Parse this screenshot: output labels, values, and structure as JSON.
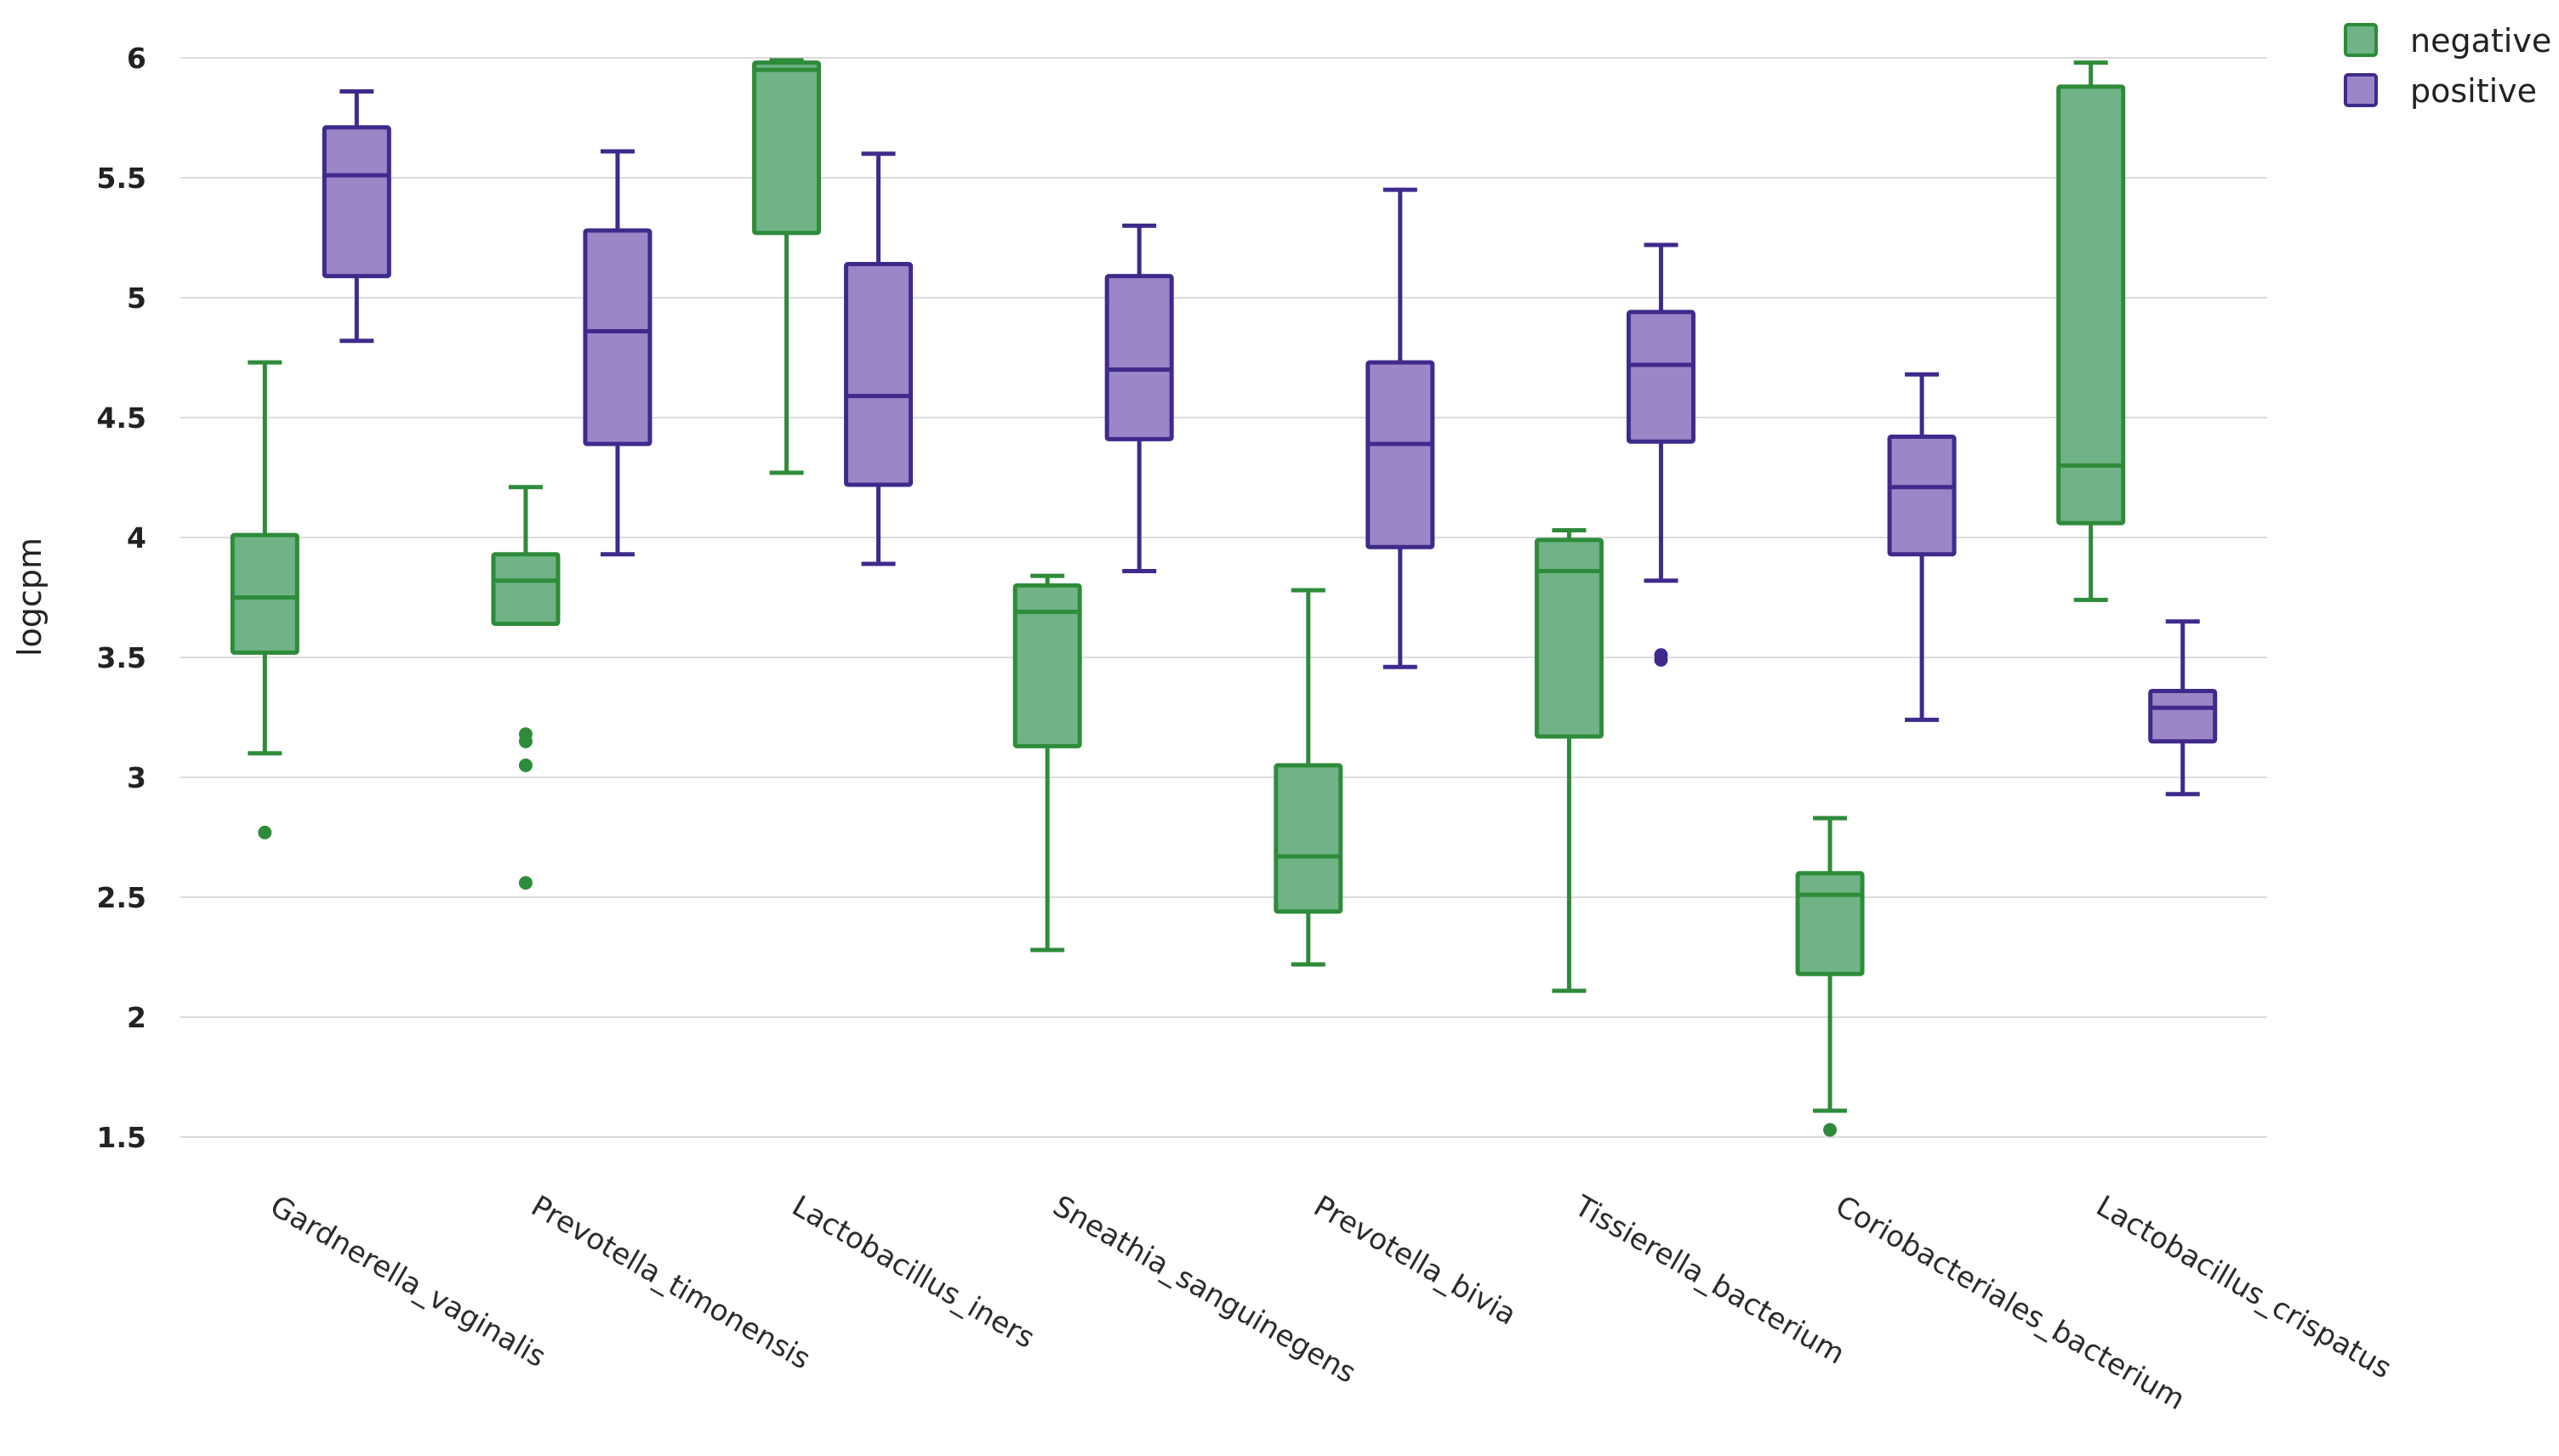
{
  "chart_data": {
    "type": "box",
    "title": "",
    "xlabel": "",
    "ylabel": "logcpm",
    "ylim": [
      1.5,
      6
    ],
    "yticks": [
      1.5,
      2,
      2.5,
      3,
      3.5,
      4,
      4.5,
      5,
      5.5,
      6
    ],
    "grid": true,
    "legend_position": "top-right",
    "categories": [
      "Gardnerella_vaginalis",
      "Prevotella_timonensis",
      "Lactobacillus_iners",
      "Sneathia_sanguinegens",
      "Prevotella_bivia",
      "Tissierella_bacterium",
      "Coriobacteriales_bacterium",
      "Lactobacillus_crispatus"
    ],
    "series": [
      {
        "name": "negative",
        "stroke": "#2e8b3a",
        "fill": "#6fb386",
        "boxes": [
          {
            "min": 3.1,
            "q1": 3.52,
            "median": 3.75,
            "q3": 4.01,
            "max": 4.73,
            "outliers": [
              2.77
            ]
          },
          {
            "min": 3.64,
            "q1": 3.64,
            "median": 3.82,
            "q3": 3.93,
            "max": 4.21,
            "outliers": [
              3.18,
              3.15,
              3.05,
              2.56
            ]
          },
          {
            "min": 4.27,
            "q1": 5.27,
            "median": 5.95,
            "q3": 5.98,
            "max": 5.99,
            "outliers": []
          },
          {
            "min": 2.28,
            "q1": 3.13,
            "median": 3.69,
            "q3": 3.8,
            "max": 3.84,
            "outliers": []
          },
          {
            "min": 2.22,
            "q1": 2.44,
            "median": 2.67,
            "q3": 3.05,
            "max": 3.78,
            "outliers": []
          },
          {
            "min": 2.11,
            "q1": 3.17,
            "median": 3.86,
            "q3": 3.99,
            "max": 4.03,
            "outliers": []
          },
          {
            "min": 1.61,
            "q1": 2.18,
            "median": 2.51,
            "q3": 2.6,
            "max": 2.83,
            "outliers": [
              1.53
            ]
          },
          {
            "min": 3.74,
            "q1": 4.06,
            "median": 4.3,
            "q3": 5.88,
            "max": 5.98,
            "outliers": []
          }
        ]
      },
      {
        "name": "positive",
        "stroke": "#3f2a8c",
        "fill": "#9b86c8",
        "boxes": [
          {
            "min": 4.82,
            "q1": 5.09,
            "median": 5.51,
            "q3": 5.71,
            "max": 5.86,
            "outliers": []
          },
          {
            "min": 3.93,
            "q1": 4.39,
            "median": 4.86,
            "q3": 5.28,
            "max": 5.61,
            "outliers": []
          },
          {
            "min": 3.89,
            "q1": 4.22,
            "median": 4.59,
            "q3": 5.14,
            "max": 5.6,
            "outliers": []
          },
          {
            "min": 3.86,
            "q1": 4.41,
            "median": 4.7,
            "q3": 5.09,
            "max": 5.3,
            "outliers": []
          },
          {
            "min": 3.46,
            "q1": 3.96,
            "median": 4.39,
            "q3": 4.73,
            "max": 5.45,
            "outliers": []
          },
          {
            "min": 3.82,
            "q1": 4.4,
            "median": 4.72,
            "q3": 4.94,
            "max": 5.22,
            "outliers": [
              3.51,
              3.49
            ]
          },
          {
            "min": 3.24,
            "q1": 3.93,
            "median": 4.21,
            "q3": 4.42,
            "max": 4.68,
            "outliers": []
          },
          {
            "min": 2.93,
            "q1": 3.15,
            "median": 3.29,
            "q3": 3.36,
            "max": 3.65,
            "outliers": []
          }
        ]
      }
    ]
  }
}
